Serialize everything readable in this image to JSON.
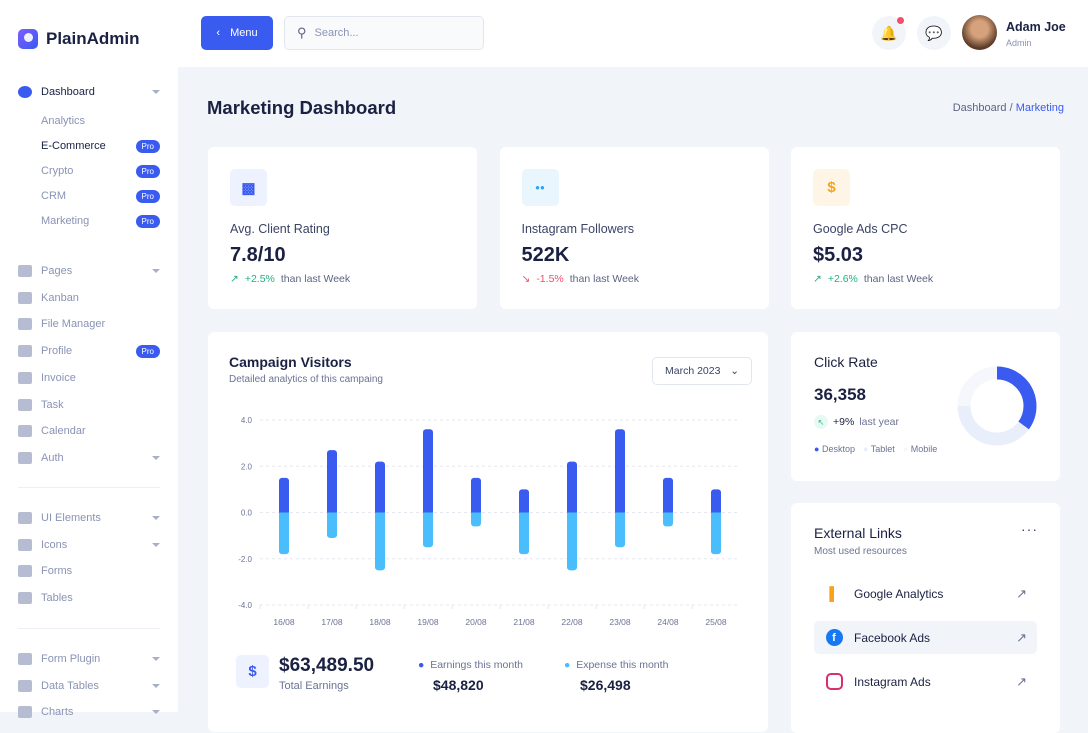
{
  "app": {
    "name": "PlainAdmin"
  },
  "sidebar": {
    "dashboard": "Dashboard",
    "sub": [
      {
        "label": "Analytics",
        "pro": ""
      },
      {
        "label": "E-Commerce",
        "pro": "Pro"
      },
      {
        "label": "Crypto",
        "pro": "Pro"
      },
      {
        "label": "CRM",
        "pro": "Pro"
      },
      {
        "label": "Marketing",
        "pro": "Pro"
      }
    ],
    "group1": [
      {
        "label": "Pages",
        "chev": true,
        "icon": "page-icon"
      },
      {
        "label": "Kanban",
        "icon": "kanban-icon"
      },
      {
        "label": "File Manager",
        "icon": "folder-icon"
      },
      {
        "label": "Profile",
        "pro": "Pro",
        "icon": "user-icon"
      },
      {
        "label": "Invoice",
        "icon": "invoice-icon"
      },
      {
        "label": "Task",
        "icon": "list-icon"
      },
      {
        "label": "Calendar",
        "icon": "calendar-icon"
      },
      {
        "label": "Auth",
        "chev": true,
        "icon": "login-icon"
      }
    ],
    "group2": [
      {
        "label": "UI Elements",
        "chev": true,
        "icon": "grid-icon"
      },
      {
        "label": "Icons",
        "chev": true,
        "icon": "cup-icon"
      },
      {
        "label": "Forms",
        "icon": "form-icon"
      },
      {
        "label": "Tables",
        "icon": "table-icon"
      }
    ],
    "group3": [
      {
        "label": "Form Plugin",
        "chev": true,
        "icon": "plug-icon"
      },
      {
        "label": "Data Tables",
        "chev": true,
        "icon": "database-icon"
      },
      {
        "label": "Charts",
        "chev": true,
        "icon": "chart-icon"
      }
    ]
  },
  "header": {
    "menu": "Menu",
    "search_placeholder": "Search...",
    "user_name": "Adam Joe",
    "user_role": "Admin"
  },
  "page": {
    "title": "Marketing Dashboard",
    "breadcrumb": [
      "Dashboard",
      "Marketing"
    ]
  },
  "stats": [
    {
      "label": "Avg. Client Rating",
      "value": "7.8/10",
      "change": "+2.5%",
      "trend": "up",
      "suffix": "than last Week",
      "color": "#3a5bf0",
      "bg": "#eef2ff",
      "icon": "bar-chart-icon"
    },
    {
      "label": "Instagram Followers",
      "value": "522K",
      "change": "-1.5%",
      "trend": "down",
      "suffix": "than last Week",
      "color": "#2ba4f0",
      "bg": "#eaf6fe",
      "icon": "users-icon"
    },
    {
      "label": "Google Ads CPC",
      "value": "$5.03",
      "change": "+2.6%",
      "trend": "up",
      "suffix": "than last Week",
      "color": "#f7a21c",
      "bg": "#fff5e6",
      "icon": "dollar-icon"
    }
  ],
  "campaign": {
    "title": "Campaign Visitors",
    "subtitle": "Detailed analytics of this campaing",
    "select": "March 2023",
    "total": "$63,489.50",
    "total_label": "Total Earnings",
    "earn_label": "Earnings this month",
    "earn": "$48,820",
    "exp_label": "Expense this month",
    "exp": "$26,498"
  },
  "chart_data": {
    "type": "bar",
    "stacked": true,
    "categories": [
      "16/08",
      "17/08",
      "18/08",
      "19/08",
      "20/08",
      "21/08",
      "22/08",
      "23/08",
      "24/08",
      "25/08"
    ],
    "series": [
      {
        "values": [
          1.5,
          2.7,
          2.2,
          3.6,
          1.5,
          1.0,
          2.2,
          3.6,
          1.5,
          1.0
        ],
        "color": "#3a5bf0"
      },
      {
        "values": [
          -1.8,
          -1.1,
          -2.5,
          -1.5,
          -0.6,
          -1.8,
          -2.5,
          -1.5,
          -0.6,
          -1.8
        ],
        "color": "#4abdfd"
      }
    ],
    "ylim": [
      -4,
      4
    ],
    "yticks": [
      "4.0",
      "2.0",
      "0.0",
      "-2.0",
      "-4.0"
    ],
    "grid": true
  },
  "click_rate": {
    "title": "Click Rate",
    "value": "36,358",
    "change": "+9%",
    "suffix": "last year",
    "legend": [
      {
        "label": "Desktop",
        "value": 35,
        "color": "#3a5bf0"
      },
      {
        "label": "Tablet",
        "value": 40,
        "color": "#e9eefb"
      },
      {
        "label": "Mobile",
        "value": 25,
        "color": "#f5f7fc"
      }
    ]
  },
  "links": {
    "title": "External Links",
    "subtitle": "Most used resources",
    "items": [
      {
        "label": "Google Analytics",
        "icon": "google-analytics-icon"
      },
      {
        "label": "Facebook Ads",
        "icon": "facebook-icon"
      },
      {
        "label": "Instagram Ads",
        "icon": "instagram-icon"
      }
    ]
  }
}
